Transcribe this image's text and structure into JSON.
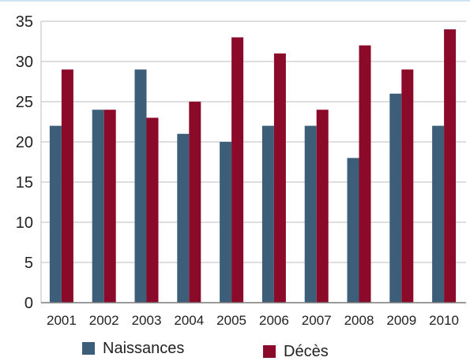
{
  "chart_data": {
    "type": "bar",
    "categories": [
      "2001",
      "2002",
      "2003",
      "2004",
      "2005",
      "2006",
      "2007",
      "2008",
      "2009",
      "2010"
    ],
    "series": [
      {
        "name": "Naissances",
        "color": "#3d5e78",
        "values": [
          22,
          24,
          29,
          21,
          20,
          22,
          22,
          18,
          26,
          22
        ]
      },
      {
        "name": "Décès",
        "color": "#8b0a2a",
        "values": [
          29,
          24,
          23,
          25,
          33,
          31,
          24,
          32,
          29,
          34
        ]
      }
    ],
    "yticks": [
      "0",
      "5",
      "10",
      "15",
      "20",
      "25",
      "30",
      "35"
    ],
    "ylim": [
      0,
      35
    ],
    "title": "",
    "xlabel": "",
    "ylabel": "",
    "grid": true,
    "legend_position": "bottom"
  }
}
